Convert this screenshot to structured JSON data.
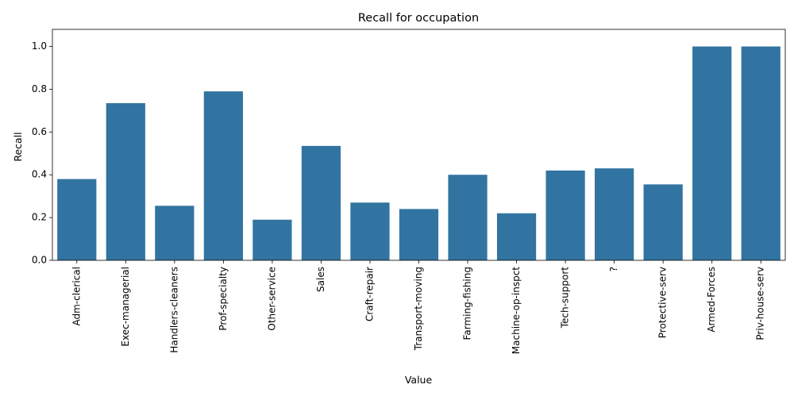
{
  "chart_data": {
    "type": "bar",
    "title": "Recall for occupation",
    "xlabel": "Value",
    "ylabel": "Recall",
    "categories": [
      "Adm-clerical",
      "Exec-managerial",
      "Handlers-cleaners",
      "Prof-specialty",
      "Other-service",
      "Sales",
      "Craft-repair",
      "Transport-moving",
      "Farming-fishing",
      "Machine-op-inspct",
      "Tech-support",
      "?",
      "Protective-serv",
      "Armed-Forces",
      "Priv-house-serv"
    ],
    "values": [
      0.38,
      0.735,
      0.255,
      0.79,
      0.19,
      0.535,
      0.27,
      0.24,
      0.4,
      0.22,
      0.42,
      0.43,
      0.355,
      1.0,
      1.0
    ],
    "ylim": [
      0,
      1.08
    ],
    "yticks": [
      "0.0",
      "0.2",
      "0.4",
      "0.6",
      "0.8",
      "1.0"
    ],
    "grid": false,
    "colors": {
      "bar": "#3274a1",
      "axis": "#000000"
    }
  }
}
